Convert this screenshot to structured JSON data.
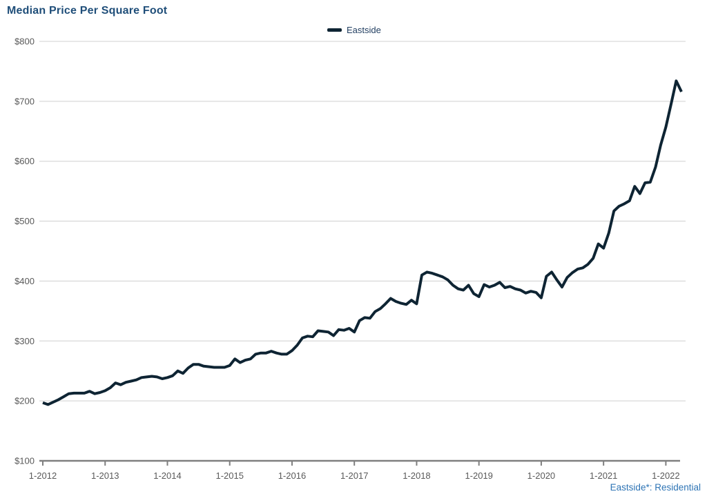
{
  "page": {
    "title": "Median Price Per Square Foot"
  },
  "legend": {
    "items": [
      {
        "label": "Eastside",
        "color": "#0e2433"
      }
    ]
  },
  "footnote": {
    "text": "Eastside*: Residential"
  },
  "colors": {
    "background": "#ffffff",
    "title_text": "#1f4e79",
    "legend_text": "#1f3c5f",
    "series_line": "#0e2433",
    "gridline": "#d9d9d9",
    "axis_line": "#7f7f7f",
    "tick_label": "#595959",
    "footnote_text": "#2e74b5"
  },
  "chart_data": {
    "type": "line",
    "title": "Median Price Per Square Foot",
    "xlabel": "",
    "ylabel": "",
    "ylim": [
      100,
      800
    ],
    "y_ticks": [
      100,
      200,
      300,
      400,
      500,
      600,
      700,
      800
    ],
    "y_tick_prefix": "$",
    "grid": "horizontal",
    "legend_position": "top-center",
    "x_unit": "month",
    "x_first_point": "1-2012",
    "x_last_point": "4-2022",
    "x_tick_labels": [
      "1-2012",
      "1-2013",
      "1-2014",
      "1-2015",
      "1-2016",
      "1-2017",
      "1-2018",
      "1-2019",
      "1-2020",
      "1-2021",
      "1-2022"
    ],
    "months_between_ticks": 12,
    "series": [
      {
        "name": "Eastside",
        "color": "#0e2433",
        "values": [
          197,
          194,
          198,
          202,
          207,
          212,
          213,
          213,
          213,
          216,
          212,
          214,
          217,
          222,
          230,
          227,
          231,
          233,
          235,
          239,
          240,
          241,
          240,
          237,
          239,
          242,
          250,
          246,
          255,
          261,
          261,
          258,
          257,
          256,
          256,
          256,
          259,
          270,
          264,
          268,
          270,
          278,
          280,
          280,
          283,
          280,
          278,
          278,
          284,
          293,
          305,
          308,
          307,
          317,
          316,
          315,
          309,
          319,
          318,
          321,
          315,
          334,
          339,
          338,
          349,
          354,
          362,
          371,
          366,
          363,
          361,
          368,
          362,
          410,
          415,
          413,
          410,
          407,
          402,
          393,
          387,
          385,
          393,
          379,
          374,
          394,
          390,
          393,
          398,
          389,
          391,
          387,
          385,
          380,
          383,
          381,
          372,
          408,
          415,
          402,
          390,
          406,
          414,
          420,
          422,
          428,
          438,
          462,
          455,
          480,
          517,
          525,
          529,
          534,
          558,
          546,
          564,
          565,
          590,
          627,
          657,
          695,
          734,
          716
        ]
      }
    ]
  }
}
